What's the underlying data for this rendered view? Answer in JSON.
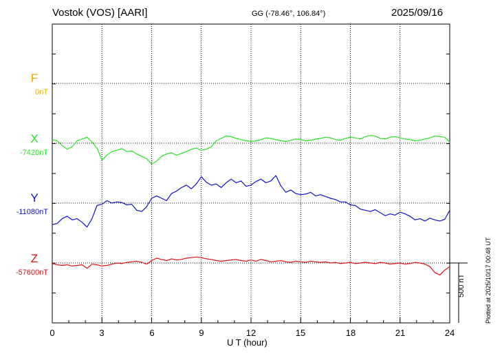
{
  "header": {
    "station": "Vostok (VOS)  [AARI]",
    "coords": "GG (-78.46°, 106.84°)",
    "date": "2025/09/16"
  },
  "footer": {
    "plotted": "Plotted at 2025/10/17 00:48 UT"
  },
  "chart_data": {
    "type": "line",
    "xlabel": "U T (hour)",
    "xlim": [
      0,
      24
    ],
    "xticks": [
      "0",
      "3",
      "6",
      "9",
      "12",
      "15",
      "18",
      "21",
      "24"
    ],
    "scale_bar": "500 nT",
    "colors": {
      "F": "#f5a800",
      "X": "#22e622",
      "Y": "#1010cc",
      "Z": "#e01010"
    },
    "series": [
      {
        "name": "F",
        "baseline": "0nT",
        "x": [],
        "y": []
      },
      {
        "name": "X",
        "baseline": "-7420nT",
        "x": [
          0,
          0.3,
          0.6,
          0.9,
          1.2,
          1.5,
          1.8,
          2.1,
          2.4,
          2.7,
          3.0,
          3.3,
          3.6,
          3.9,
          4.2,
          4.5,
          4.8,
          5.1,
          5.4,
          5.7,
          6.0,
          6.3,
          6.6,
          6.9,
          7.2,
          7.5,
          7.8,
          8.1,
          8.4,
          8.7,
          9.0,
          9.3,
          9.6,
          9.9,
          10.2,
          10.5,
          10.8,
          11.1,
          11.4,
          11.7,
          12.0,
          12.3,
          12.6,
          12.9,
          13.2,
          13.5,
          13.8,
          14.1,
          14.4,
          14.7,
          15.0,
          15.3,
          15.6,
          15.9,
          16.2,
          16.5,
          16.8,
          17.1,
          17.4,
          17.7,
          18.0,
          18.3,
          18.6,
          18.9,
          19.2,
          19.5,
          19.8,
          20.1,
          20.4,
          20.7,
          21.0,
          21.3,
          21.6,
          21.9,
          22.2,
          22.5,
          22.8,
          23.1,
          23.4,
          23.7,
          24.0
        ],
        "y": [
          30,
          20,
          -20,
          -50,
          -30,
          20,
          35,
          50,
          10,
          -40,
          -140,
          -100,
          -70,
          -60,
          -45,
          -70,
          -65,
          -90,
          -110,
          -130,
          -175,
          -150,
          -110,
          -90,
          -80,
          -100,
          -85,
          -70,
          -50,
          -40,
          -60,
          -50,
          -30,
          20,
          40,
          60,
          55,
          40,
          30,
          20,
          15,
          20,
          30,
          45,
          40,
          30,
          20,
          15,
          25,
          35,
          30,
          20,
          25,
          35,
          40,
          50,
          45,
          30,
          25,
          40,
          50,
          45,
          35,
          55,
          65,
          60,
          40,
          35,
          50,
          55,
          45,
          35,
          30,
          20,
          25,
          35,
          45,
          60,
          55,
          50,
          10
        ]
      },
      {
        "name": "Y",
        "baseline": "-11080nT",
        "x": [
          0,
          0.3,
          0.6,
          0.9,
          1.2,
          1.5,
          1.8,
          2.1,
          2.4,
          2.7,
          3.0,
          3.3,
          3.6,
          3.9,
          4.2,
          4.5,
          4.8,
          5.1,
          5.4,
          5.7,
          6.0,
          6.3,
          6.6,
          6.9,
          7.2,
          7.5,
          7.8,
          8.1,
          8.4,
          8.7,
          9.0,
          9.3,
          9.6,
          9.9,
          10.2,
          10.5,
          10.8,
          11.1,
          11.4,
          11.7,
          12.0,
          12.3,
          12.6,
          12.9,
          13.2,
          13.5,
          13.8,
          14.1,
          14.4,
          14.7,
          15.0,
          15.3,
          15.6,
          15.9,
          16.2,
          16.5,
          16.8,
          17.1,
          17.4,
          17.7,
          18.0,
          18.3,
          18.6,
          18.9,
          19.2,
          19.5,
          19.8,
          20.1,
          20.4,
          20.7,
          21.0,
          21.3,
          21.6,
          21.9,
          22.2,
          22.5,
          22.8,
          23.1,
          23.4,
          23.7,
          24.0
        ],
        "y": [
          -180,
          -170,
          -130,
          -110,
          -140,
          -130,
          -160,
          -200,
          -130,
          -20,
          -10,
          20,
          0,
          10,
          5,
          -15,
          -10,
          -60,
          -70,
          -30,
          40,
          60,
          40,
          20,
          80,
          100,
          130,
          150,
          120,
          160,
          220,
          175,
          150,
          160,
          130,
          170,
          200,
          170,
          185,
          140,
          150,
          180,
          200,
          170,
          185,
          230,
          145,
          90,
          110,
          80,
          70,
          75,
          90,
          60,
          70,
          55,
          40,
          30,
          10,
          10,
          -15,
          -20,
          -50,
          -60,
          -70,
          -55,
          -80,
          -105,
          -90,
          -100,
          -75,
          -90,
          -110,
          -140,
          -130,
          -150,
          -125,
          -140,
          -150,
          -135,
          -60
        ]
      },
      {
        "name": "Z",
        "baseline": "-57600nT",
        "x": [
          0,
          0.3,
          0.6,
          0.9,
          1.2,
          1.5,
          1.8,
          2.1,
          2.4,
          2.7,
          3.0,
          3.3,
          3.6,
          3.9,
          4.2,
          4.5,
          4.8,
          5.1,
          5.4,
          5.7,
          6.0,
          6.3,
          6.6,
          6.9,
          7.2,
          7.5,
          7.8,
          8.1,
          8.4,
          8.7,
          9.0,
          9.3,
          9.6,
          9.9,
          10.2,
          10.5,
          10.8,
          11.1,
          11.4,
          11.7,
          12.0,
          12.3,
          12.6,
          12.9,
          13.2,
          13.5,
          13.8,
          14.1,
          14.4,
          14.7,
          15.0,
          15.3,
          15.6,
          15.9,
          16.2,
          16.5,
          16.8,
          17.1,
          17.4,
          17.7,
          18.0,
          18.3,
          18.6,
          18.9,
          19.2,
          19.5,
          19.8,
          20.1,
          20.4,
          20.7,
          21.0,
          21.3,
          21.6,
          21.9,
          22.2,
          22.5,
          22.8,
          23.1,
          23.4,
          23.7,
          24.0
        ],
        "y": [
          -5,
          -15,
          -20,
          -15,
          -25,
          -20,
          -15,
          -45,
          -10,
          -15,
          -25,
          -20,
          -10,
          0,
          -5,
          5,
          10,
          15,
          5,
          -10,
          20,
          40,
          30,
          20,
          35,
          25,
          30,
          40,
          45,
          50,
          45,
          35,
          30,
          20,
          15,
          20,
          25,
          30,
          20,
          15,
          25,
          15,
          30,
          20,
          10,
          15,
          20,
          10,
          5,
          15,
          10,
          5,
          15,
          10,
          5,
          10,
          0,
          5,
          -5,
          0,
          5,
          -5,
          0,
          5,
          0,
          -5,
          5,
          0,
          -10,
          -5,
          0,
          -10,
          -5,
          5,
          0,
          -10,
          -30,
          -80,
          -100,
          -60,
          -30
        ]
      }
    ]
  }
}
